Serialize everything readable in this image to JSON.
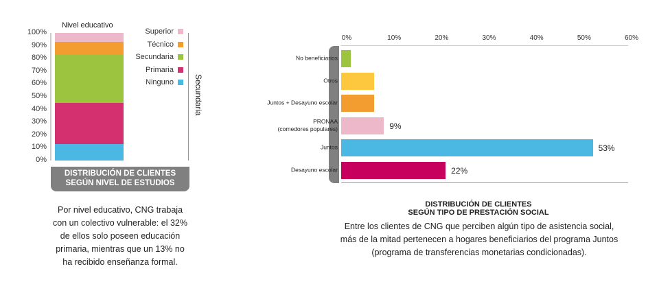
{
  "chart_data": [
    {
      "type": "stacked-bar",
      "title": "DISTRIBUCIÓN DE CLIENTES SEGÚN NIVEL DE ESTUDIOS",
      "xlabel": "Nivel educativo",
      "side_label": "Secundaria",
      "ylim": [
        0,
        100
      ],
      "yticks": [
        "0%",
        "10%",
        "20%",
        "30%",
        "40%",
        "50%",
        "60%",
        "70%",
        "80%",
        "90%",
        "100%"
      ],
      "series": [
        {
          "name": "Ninguno",
          "value": 13,
          "color": "#4bb8e4"
        },
        {
          "name": "Primaria",
          "value": 32,
          "color": "#d42f6e"
        },
        {
          "name": "Secundaria",
          "value": 38,
          "color": "#9cc43f"
        },
        {
          "name": "Técnico",
          "value": 10,
          "color": "#f39c2f"
        },
        {
          "name": "Superior",
          "value": 7,
          "color": "#edb8c9"
        }
      ],
      "legend": [
        "Superior",
        "Técnico",
        "Secundaria",
        "Primaria",
        "Ninguno"
      ]
    },
    {
      "type": "bar",
      "orientation": "horizontal",
      "title": "DISTRIBUCIÓN DE CLIENTES SEGÚN TIPO DE PRESTACIÓN SOCIAL",
      "xlim": [
        0,
        60
      ],
      "xticks": [
        "0%",
        "10%",
        "20%",
        "30%",
        "40%",
        "50%",
        "60%"
      ],
      "categories": [
        "No beneficiarios",
        "Otros",
        "Juntos + Desayuno escolar",
        "PRONAA|(comedores populares)",
        "Juntos",
        "Desayuno escolar"
      ],
      "values": [
        2,
        7,
        7,
        9,
        53,
        22
      ],
      "labels": [
        "",
        "",
        "",
        "9%",
        "53%",
        "22%"
      ],
      "colors": [
        "#9cc43f",
        "#fdc73e",
        "#f39c2f",
        "#edb8c9",
        "#4bb8e4",
        "#c8005d"
      ]
    }
  ],
  "left_caption": [
    "Por nivel educativo, CNG trabaja",
    "con un colectivo vulnerable: el 32%",
    "de ellos solo poseen educación",
    "primaria, mientras que un 13% no",
    "ha recibido enseñanza formal."
  ],
  "right_caption": [
    "Entre los clientes de CNG que perciben algún tipo de asistencia social,",
    "más de la mitad pertenecen a hogares beneficiarios del programa Juntos",
    "(programa de transferencias monetarias condicionadas)."
  ],
  "left_title": [
    "DISTRIBUCIÓN DE CLIENTES",
    "SEGÚN NIVEL DE ESTUDIOS"
  ],
  "right_title": [
    "DISTRIBUCIÓN DE CLIENTES",
    "SEGÚN TIPO DE PRESTACIÓN SOCIAL"
  ]
}
